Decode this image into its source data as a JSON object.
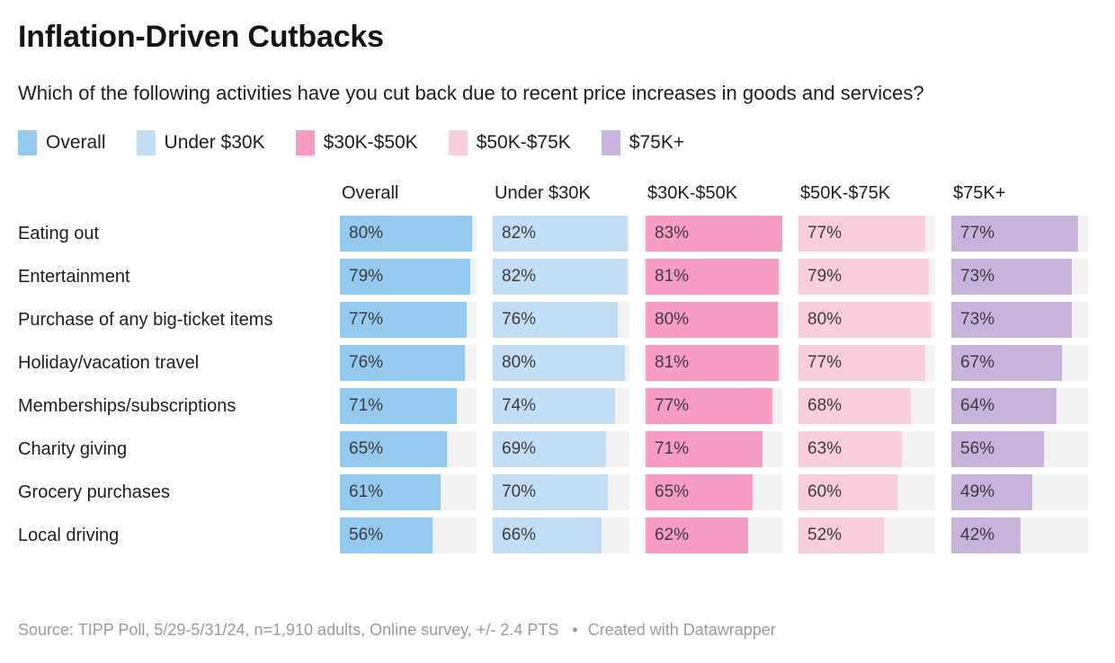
{
  "header": {
    "title": "Inflation-Driven Cutbacks",
    "subtitle": "Which of the following activities have you cut back due to recent price increases in goods and services?"
  },
  "chart_data": {
    "type": "bar",
    "layout": "horizontal-bar-table",
    "title": "Inflation-Driven Cutbacks",
    "subtitle": "Which of the following activities have you cut back due to recent price increases in goods and services?",
    "value_suffix": "%",
    "scale_max": 83,
    "xlim": [
      0,
      83
    ],
    "track_color": "#f2f2f2",
    "legend_position": "top",
    "column_headers": [
      "Overall",
      "Under $30K",
      "$30K-$50K",
      "$50K-$75K",
      "$75K+"
    ],
    "categories": [
      "Eating out",
      "Entertainment",
      "Purchase of any big-ticket items",
      "Holiday/vacation travel",
      "Memberships/subscriptions",
      "Charity giving",
      "Grocery purchases",
      "Local driving"
    ],
    "series": [
      {
        "name": "Overall",
        "color": "#94c9f0",
        "values": [
          80,
          79,
          77,
          76,
          71,
          65,
          61,
          56
        ]
      },
      {
        "name": "Under $30K",
        "color": "#c1def6",
        "values": [
          82,
          82,
          76,
          80,
          74,
          69,
          70,
          66
        ]
      },
      {
        "name": "$30K-$50K",
        "color": "#f99cc5",
        "values": [
          83,
          81,
          80,
          81,
          77,
          71,
          65,
          62
        ]
      },
      {
        "name": "$50K-$75K",
        "color": "#fbcede",
        "values": [
          77,
          79,
          80,
          77,
          68,
          63,
          60,
          52
        ]
      },
      {
        "name": "$75K+",
        "color": "#c9b2dc",
        "values": [
          77,
          73,
          73,
          67,
          64,
          56,
          49,
          42
        ]
      }
    ]
  },
  "footer": {
    "source": "Source: TIPP Poll, 5/29-5/31/24, n=1,910 adults, Online survey, +/- 2.4 PTS",
    "separator": "•",
    "attribution": "Created with Datawrapper"
  }
}
